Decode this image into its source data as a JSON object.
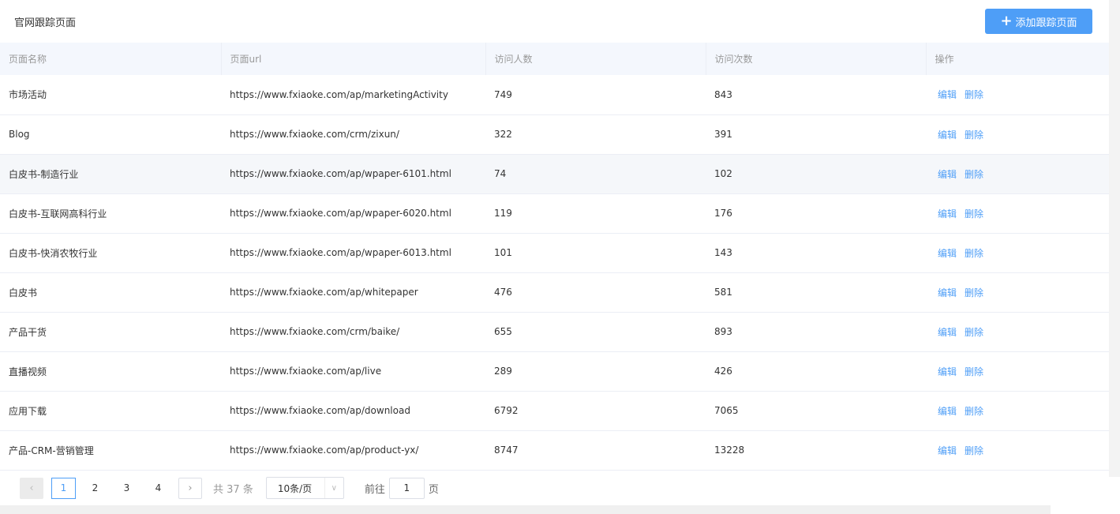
{
  "header": {
    "title": "官网跟踪页面",
    "add_button": "添加跟踪页面"
  },
  "table": {
    "columns": [
      "页面名称",
      "页面url",
      "访问人数",
      "访问次数",
      "操作"
    ],
    "rows": [
      {
        "name": "市场活动",
        "url": "https://www.fxiaoke.com/ap/marketingActivity",
        "visitors": "749",
        "visits": "843"
      },
      {
        "name": "Blog",
        "url": "https://www.fxiaoke.com/crm/zixun/",
        "visitors": "322",
        "visits": "391"
      },
      {
        "name": "白皮书-制造行业",
        "url": "https://www.fxiaoke.com/ap/wpaper-6101.html",
        "visitors": "74",
        "visits": "102"
      },
      {
        "name": "白皮书-互联网高科行业",
        "url": "https://www.fxiaoke.com/ap/wpaper-6020.html",
        "visitors": "119",
        "visits": "176"
      },
      {
        "name": "白皮书-快消农牧行业",
        "url": "https://www.fxiaoke.com/ap/wpaper-6013.html",
        "visitors": "101",
        "visits": "143"
      },
      {
        "name": "白皮书",
        "url": "https://www.fxiaoke.com/ap/whitepaper",
        "visitors": "476",
        "visits": "581"
      },
      {
        "name": "产品干货",
        "url": "https://www.fxiaoke.com/crm/baike/",
        "visitors": "655",
        "visits": "893"
      },
      {
        "name": "直播视频",
        "url": "https://www.fxiaoke.com/ap/live",
        "visitors": "289",
        "visits": "426"
      },
      {
        "name": "应用下载",
        "url": "https://www.fxiaoke.com/ap/download",
        "visitors": "6792",
        "visits": "7065"
      },
      {
        "name": "产品-CRM-营销管理",
        "url": "https://www.fxiaoke.com/ap/product-yx/",
        "visitors": "8747",
        "visits": "13228"
      }
    ],
    "edit_label": "编辑",
    "delete_label": "删除"
  },
  "pagination": {
    "pages": [
      "1",
      "2",
      "3",
      "4"
    ],
    "total": "共 37 条",
    "page_size": "10条/页",
    "goto_label": "前往",
    "goto_value": "1",
    "goto_suffix": "页"
  },
  "colors": {
    "accent": "#4e9ef7",
    "header_bg": "#f4f7fd"
  }
}
